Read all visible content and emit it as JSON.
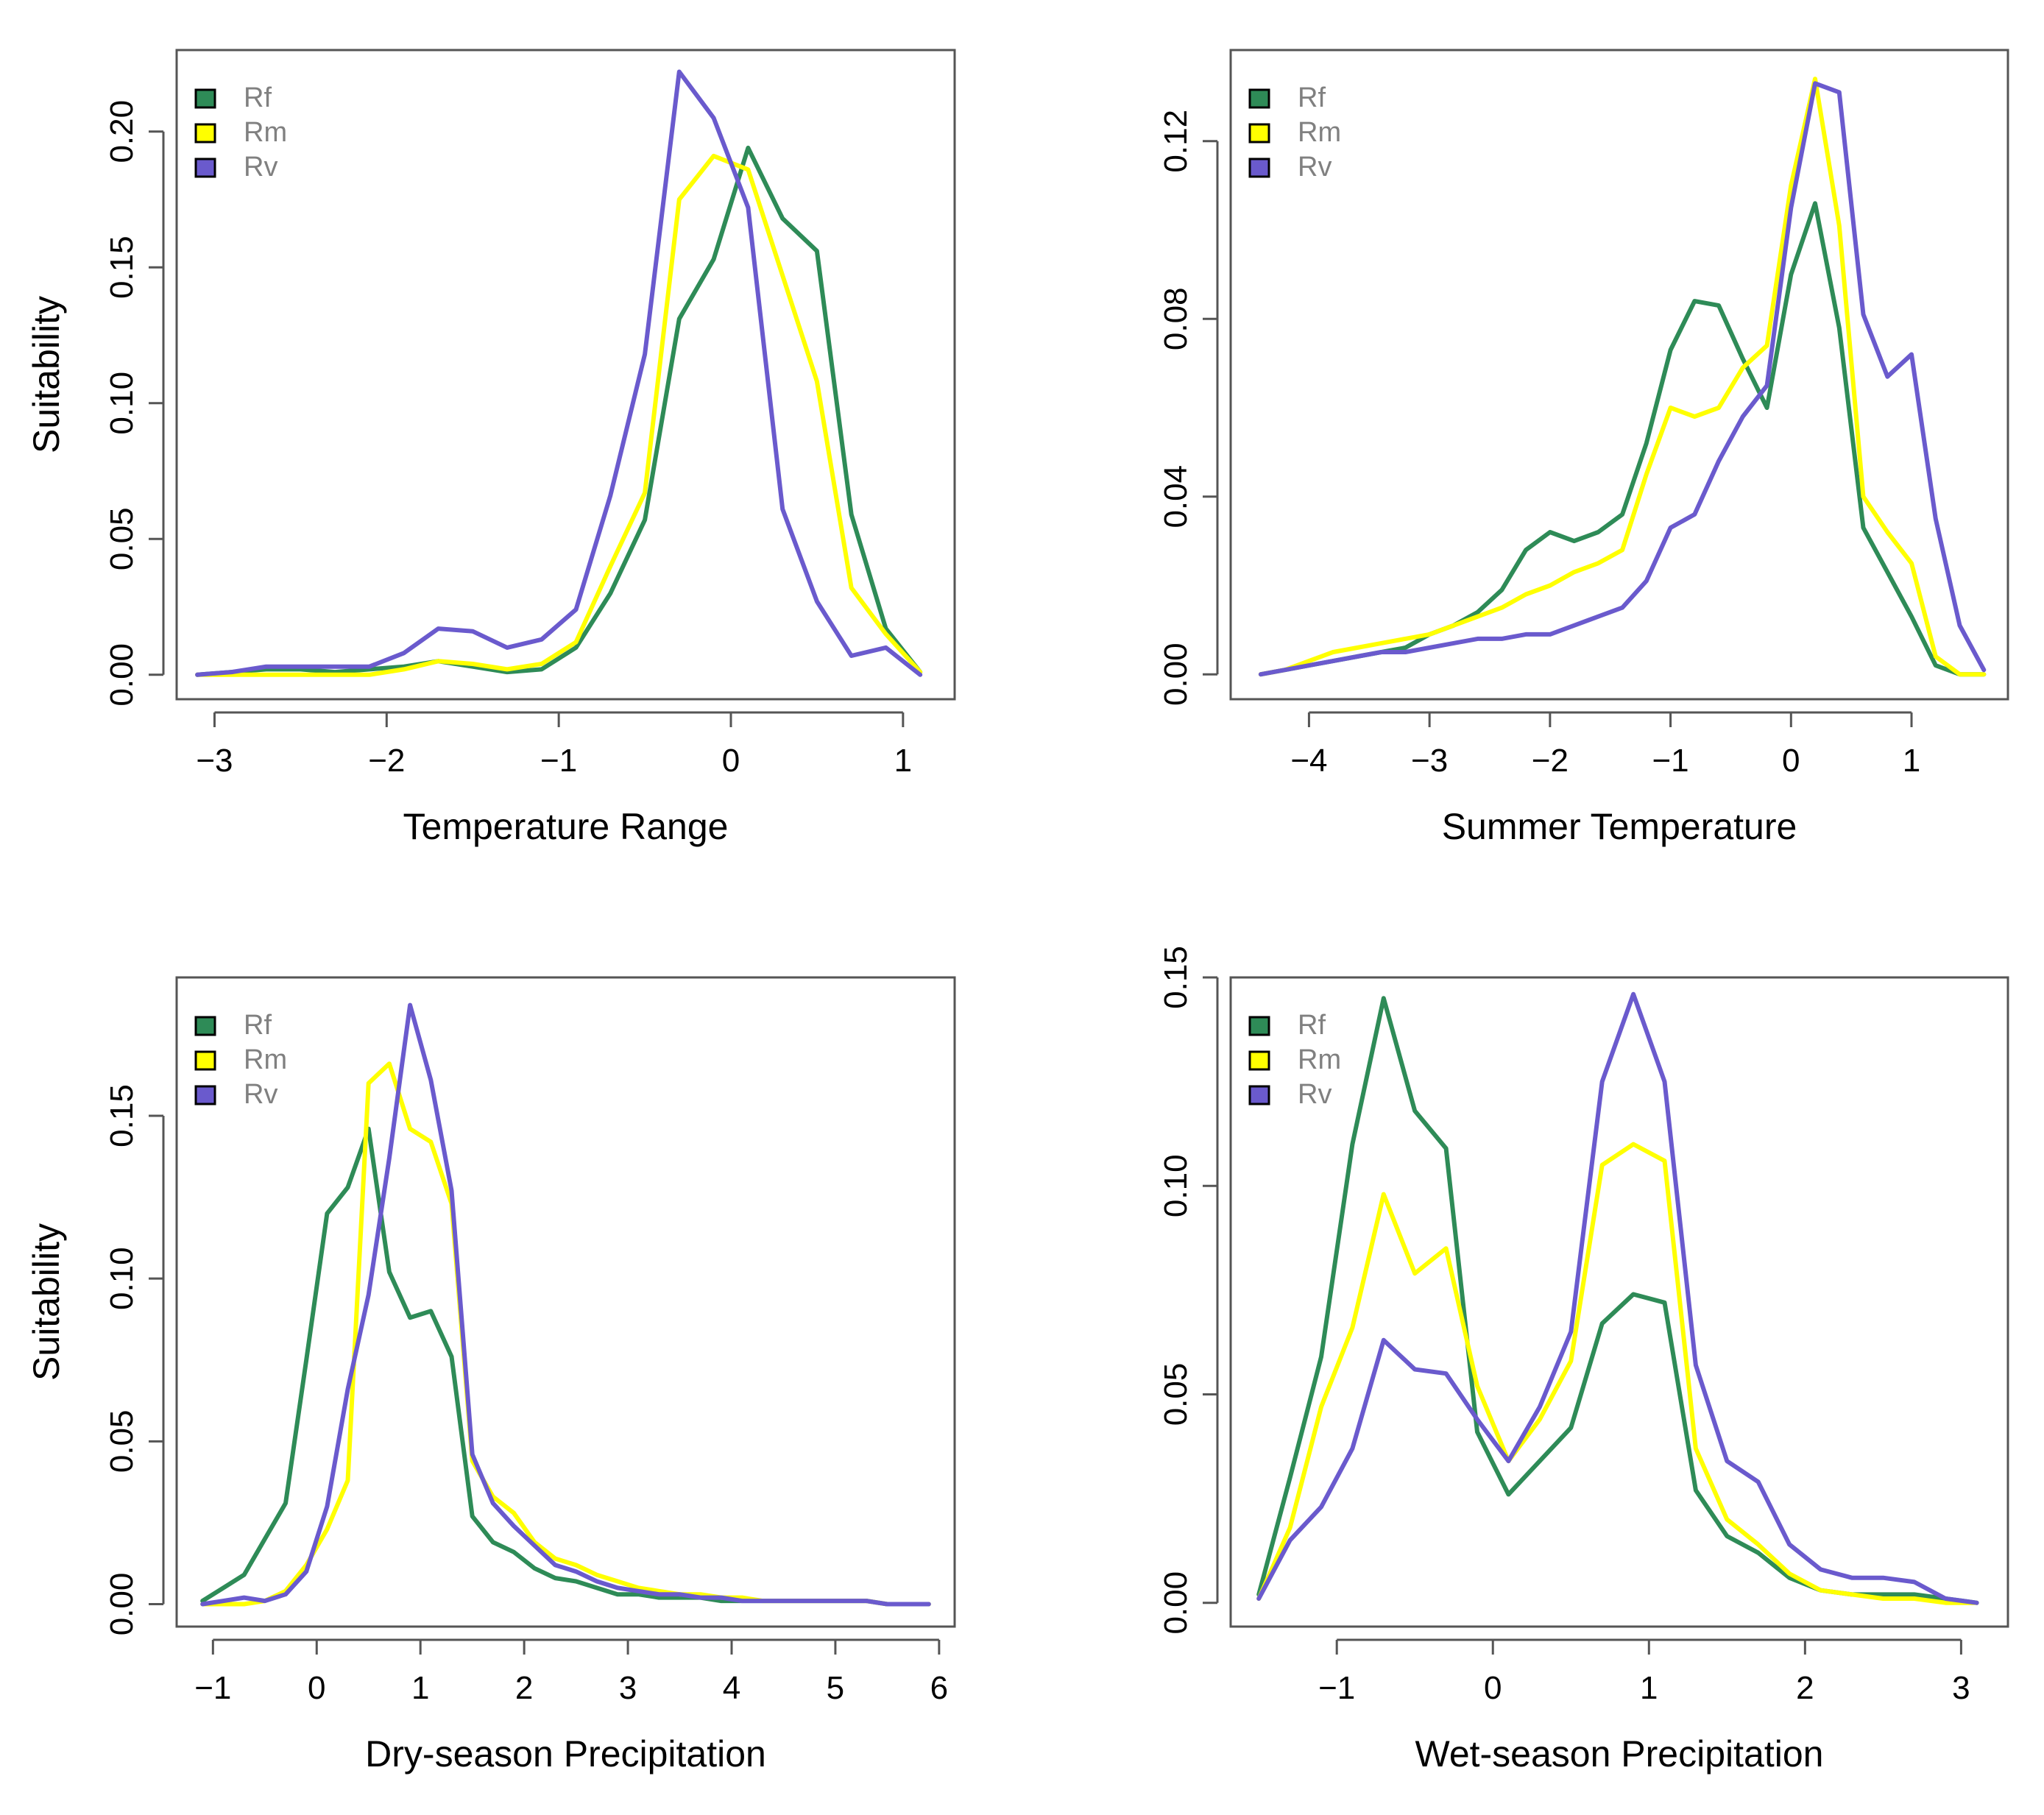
{
  "colors": {
    "Rf": "#2e8b57",
    "Rm": "#ffff00",
    "Rv": "#6a5acd"
  },
  "chart_data": [
    {
      "type": "line",
      "xlabel": "Temperature Range",
      "ylabel": "Suitability",
      "xlim": [
        -3.22,
        1.3
      ],
      "ylim": [
        -0.009,
        0.23
      ],
      "xticks": [
        -3,
        -2,
        -1,
        0,
        1
      ],
      "yticks": [
        0.0,
        0.05,
        0.1,
        0.15,
        0.2
      ],
      "ytick_labels": [
        "0.00",
        "0.05",
        "0.10",
        "0.15",
        "0.20"
      ],
      "legend": [
        "Rf",
        "Rm",
        "Rv"
      ],
      "legend_position": "top-left",
      "series": [
        {
          "name": "Rf",
          "x": [
            -3.1,
            -2.9,
            -2.7,
            -2.5,
            -2.3,
            -2.1,
            -1.9,
            -1.7,
            -1.5,
            -1.3,
            -1.1,
            -0.9,
            -0.7,
            -0.5,
            -0.3,
            -0.1,
            0.1,
            0.3,
            0.5,
            0.7,
            0.9,
            1.1
          ],
          "y": [
            0,
            0.001,
            0.002,
            0.002,
            0.001,
            0.002,
            0.003,
            0.005,
            0.003,
            0.001,
            0.002,
            0.01,
            0.03,
            0.057,
            0.131,
            0.153,
            0.194,
            0.168,
            0.156,
            0.059,
            0.017,
            0.001
          ]
        },
        {
          "name": "Rm",
          "x": [
            -3.1,
            -2.9,
            -2.7,
            -2.5,
            -2.3,
            -2.1,
            -1.9,
            -1.7,
            -1.5,
            -1.3,
            -1.1,
            -0.9,
            -0.7,
            -0.5,
            -0.3,
            -0.1,
            0.1,
            0.3,
            0.5,
            0.7,
            0.9,
            1.1
          ],
          "y": [
            0,
            0,
            0,
            0,
            0,
            0,
            0.002,
            0.005,
            0.004,
            0.002,
            0.004,
            0.012,
            0.04,
            0.067,
            0.175,
            0.191,
            0.186,
            0.147,
            0.108,
            0.032,
            0.015,
            0.001
          ]
        },
        {
          "name": "Rv",
          "x": [
            -3.1,
            -2.9,
            -2.7,
            -2.5,
            -2.3,
            -2.1,
            -1.9,
            -1.7,
            -1.5,
            -1.3,
            -1.1,
            -0.9,
            -0.7,
            -0.5,
            -0.3,
            -0.1,
            0.1,
            0.3,
            0.5,
            0.7,
            0.9,
            1.1
          ],
          "y": [
            0,
            0.001,
            0.003,
            0.003,
            0.003,
            0.003,
            0.008,
            0.017,
            0.016,
            0.01,
            0.013,
            0.024,
            0.066,
            0.118,
            0.222,
            0.205,
            0.172,
            0.061,
            0.027,
            0.007,
            0.01,
            0
          ]
        }
      ]
    },
    {
      "type": "line",
      "xlabel": "Summer Temperature",
      "ylabel": "",
      "xlim": [
        -4.65,
        1.8
      ],
      "ylim": [
        -0.0056,
        0.1405
      ],
      "xticks": [
        -4,
        -3,
        -2,
        -1,
        0,
        1
      ],
      "yticks": [
        0.0,
        0.04,
        0.08,
        0.12
      ],
      "ytick_labels": [
        "0.00",
        "0.04",
        "0.08",
        "0.12"
      ],
      "legend": [
        "Rf",
        "Rm",
        "Rv"
      ],
      "legend_position": "top-left",
      "series": [
        {
          "name": "Rf",
          "x": [
            -4.4,
            -4.2,
            -4.0,
            -3.8,
            -3.6,
            -3.4,
            -3.2,
            -3.0,
            -2.8,
            -2.6,
            -2.4,
            -2.2,
            -2.0,
            -1.8,
            -1.6,
            -1.4,
            -1.2,
            -1.0,
            -0.8,
            -0.6,
            -0.4,
            -0.2,
            0.0,
            0.2,
            0.4,
            0.6,
            0.8,
            1.0,
            1.2,
            1.4,
            1.6
          ],
          "y": [
            0,
            0.001,
            0.002,
            0.003,
            0.004,
            0.005,
            0.006,
            0.009,
            0.011,
            0.014,
            0.019,
            0.028,
            0.032,
            0.03,
            0.032,
            0.036,
            0.052,
            0.073,
            0.084,
            0.083,
            0.071,
            0.06,
            0.09,
            0.106,
            0.078,
            0.033,
            0.023,
            0.013,
            0.002,
            0,
            0
          ]
        },
        {
          "name": "Rm",
          "x": [
            -4.4,
            -4.2,
            -4.0,
            -3.8,
            -3.6,
            -3.4,
            -3.2,
            -3.0,
            -2.8,
            -2.6,
            -2.4,
            -2.2,
            -2.0,
            -1.8,
            -1.6,
            -1.4,
            -1.2,
            -1.0,
            -0.8,
            -0.6,
            -0.4,
            -0.2,
            0.0,
            0.2,
            0.4,
            0.6,
            0.8,
            1.0,
            1.2,
            1.4,
            1.6
          ],
          "y": [
            0,
            0.001,
            0.003,
            0.005,
            0.006,
            0.007,
            0.008,
            0.009,
            0.011,
            0.013,
            0.015,
            0.018,
            0.02,
            0.023,
            0.025,
            0.028,
            0.045,
            0.06,
            0.058,
            0.06,
            0.069,
            0.074,
            0.11,
            0.134,
            0.101,
            0.04,
            0.032,
            0.025,
            0.004,
            0,
            0
          ]
        },
        {
          "name": "Rv",
          "x": [
            -4.4,
            -4.2,
            -4.0,
            -3.8,
            -3.6,
            -3.4,
            -3.2,
            -3.0,
            -2.8,
            -2.6,
            -2.4,
            -2.2,
            -2.0,
            -1.8,
            -1.6,
            -1.4,
            -1.2,
            -1.0,
            -0.8,
            -0.6,
            -0.4,
            -0.2,
            0.0,
            0.2,
            0.4,
            0.6,
            0.8,
            1.0,
            1.2,
            1.4,
            1.6
          ],
          "y": [
            0,
            0.001,
            0.002,
            0.003,
            0.004,
            0.005,
            0.005,
            0.006,
            0.007,
            0.008,
            0.008,
            0.009,
            0.009,
            0.011,
            0.013,
            0.015,
            0.021,
            0.033,
            0.036,
            0.048,
            0.058,
            0.065,
            0.105,
            0.133,
            0.131,
            0.081,
            0.067,
            0.072,
            0.035,
            0.011,
            0.001
          ]
        }
      ]
    },
    {
      "type": "line",
      "xlabel": "Dry-season Precipitation",
      "ylabel": "Suitability",
      "xlim": [
        -1.35,
        6.15
      ],
      "ylim": [
        -0.0069,
        0.1925
      ],
      "xticks": [
        -1,
        0,
        1,
        2,
        3,
        4,
        5,
        6
      ],
      "yticks": [
        0.0,
        0.05,
        0.1,
        0.15
      ],
      "ytick_labels": [
        "0.00",
        "0.05",
        "0.10",
        "0.15"
      ],
      "legend": [
        "Rf",
        "Rm",
        "Rv"
      ],
      "legend_position": "top-left",
      "series": [
        {
          "name": "Rf",
          "x": [
            -1.1,
            -0.9,
            -0.7,
            -0.5,
            -0.3,
            -0.1,
            0.1,
            0.3,
            0.5,
            0.7,
            0.9,
            1.1,
            1.3,
            1.5,
            1.7,
            1.9,
            2.1,
            2.3,
            2.5,
            2.7,
            2.9,
            3.1,
            3.3,
            3.5,
            3.7,
            3.9,
            4.1,
            4.3,
            4.5,
            4.7,
            4.9,
            5.1,
            5.3,
            5.5,
            5.7,
            5.9
          ],
          "y": [
            0.001,
            0.005,
            0.009,
            0.02,
            0.031,
            0.075,
            0.12,
            0.128,
            0.146,
            0.102,
            0.088,
            0.09,
            0.076,
            0.027,
            0.019,
            0.016,
            0.011,
            0.008,
            0.007,
            0.005,
            0.003,
            0.003,
            0.002,
            0.002,
            0.002,
            0.001,
            0.001,
            0.001,
            0.001,
            0.001,
            0.001,
            0.001,
            0.001,
            0,
            0,
            0
          ]
        },
        {
          "name": "Rm",
          "x": [
            -1.1,
            -0.9,
            -0.7,
            -0.5,
            -0.3,
            -0.1,
            0.1,
            0.3,
            0.5,
            0.7,
            0.9,
            1.1,
            1.3,
            1.5,
            1.7,
            1.9,
            2.1,
            2.3,
            2.5,
            2.7,
            2.9,
            3.1,
            3.3,
            3.5,
            3.7,
            3.9,
            4.1,
            4.3,
            4.5,
            4.7,
            4.9,
            5.1,
            5.3,
            5.5,
            5.7,
            5.9
          ],
          "y": [
            0,
            0,
            0,
            0.001,
            0.004,
            0.012,
            0.023,
            0.038,
            0.16,
            0.166,
            0.146,
            0.142,
            0.123,
            0.044,
            0.033,
            0.028,
            0.019,
            0.014,
            0.012,
            0.009,
            0.007,
            0.005,
            0.004,
            0.003,
            0.003,
            0.002,
            0.002,
            0.001,
            0.001,
            0.001,
            0.001,
            0.001,
            0.001,
            0,
            0,
            0
          ]
        },
        {
          "name": "Rv",
          "x": [
            -1.1,
            -0.9,
            -0.7,
            -0.5,
            -0.3,
            -0.1,
            0.1,
            0.3,
            0.5,
            0.7,
            0.9,
            1.1,
            1.3,
            1.5,
            1.7,
            1.9,
            2.1,
            2.3,
            2.5,
            2.7,
            2.9,
            3.1,
            3.3,
            3.5,
            3.7,
            3.9,
            4.1,
            4.3,
            4.5,
            4.7,
            4.9,
            5.1,
            5.3,
            5.5,
            5.7,
            5.9
          ],
          "y": [
            0,
            0.001,
            0.002,
            0.001,
            0.003,
            0.01,
            0.03,
            0.066,
            0.095,
            0.137,
            0.184,
            0.161,
            0.127,
            0.046,
            0.031,
            0.024,
            0.018,
            0.012,
            0.01,
            0.007,
            0.005,
            0.004,
            0.003,
            0.003,
            0.002,
            0.002,
            0.001,
            0.001,
            0.001,
            0.001,
            0.001,
            0.001,
            0.001,
            0,
            0,
            0
          ]
        }
      ]
    },
    {
      "type": "line",
      "xlabel": "Wet-season Precipitation",
      "ylabel": "",
      "xlim": [
        -1.68,
        3.3
      ],
      "ylim": [
        -0.0057,
        0.15
      ],
      "xticks": [
        -1,
        0,
        1,
        2,
        3
      ],
      "yticks": [
        0.0,
        0.05,
        0.1,
        0.15
      ],
      "ytick_labels": [
        "0.00",
        "0.05",
        "0.10",
        "0.15"
      ],
      "legend": [
        "Rf",
        "Rm",
        "Rv"
      ],
      "legend_position": "top-left",
      "series": [
        {
          "name": "Rf",
          "x": [
            -1.5,
            -1.3,
            -1.1,
            -0.9,
            -0.7,
            -0.5,
            -0.3,
            -0.1,
            0.1,
            0.3,
            0.5,
            0.7,
            0.9,
            1.1,
            1.3,
            1.5,
            1.7,
            1.9,
            2.1,
            2.3,
            2.5,
            2.7,
            2.9,
            3.1
          ],
          "y": [
            0.002,
            0.03,
            0.059,
            0.11,
            0.145,
            0.118,
            0.109,
            0.041,
            0.026,
            0.034,
            0.042,
            0.067,
            0.074,
            0.072,
            0.027,
            0.016,
            0.012,
            0.006,
            0.003,
            0.002,
            0.002,
            0.002,
            0.001,
            0
          ]
        },
        {
          "name": "Rm",
          "x": [
            -1.5,
            -1.3,
            -1.1,
            -0.9,
            -0.7,
            -0.5,
            -0.3,
            -0.1,
            0.1,
            0.3,
            0.5,
            0.7,
            0.9,
            1.1,
            1.3,
            1.5,
            1.7,
            1.9,
            2.1,
            2.3,
            2.5,
            2.7,
            2.9,
            3.1
          ],
          "y": [
            0.001,
            0.018,
            0.047,
            0.066,
            0.098,
            0.079,
            0.085,
            0.052,
            0.034,
            0.044,
            0.058,
            0.105,
            0.11,
            0.106,
            0.037,
            0.02,
            0.014,
            0.007,
            0.003,
            0.002,
            0.001,
            0.001,
            0,
            0
          ]
        },
        {
          "name": "Rv",
          "x": [
            -1.5,
            -1.3,
            -1.1,
            -0.9,
            -0.7,
            -0.5,
            -0.3,
            -0.1,
            0.1,
            0.3,
            0.5,
            0.7,
            0.9,
            1.1,
            1.3,
            1.5,
            1.7,
            1.9,
            2.1,
            2.3,
            2.5,
            2.7,
            2.9,
            3.1
          ],
          "y": [
            0.001,
            0.015,
            0.023,
            0.037,
            0.063,
            0.056,
            0.055,
            0.044,
            0.034,
            0.047,
            0.065,
            0.125,
            0.146,
            0.125,
            0.057,
            0.034,
            0.029,
            0.014,
            0.008,
            0.006,
            0.006,
            0.005,
            0.001,
            0
          ]
        }
      ]
    }
  ]
}
